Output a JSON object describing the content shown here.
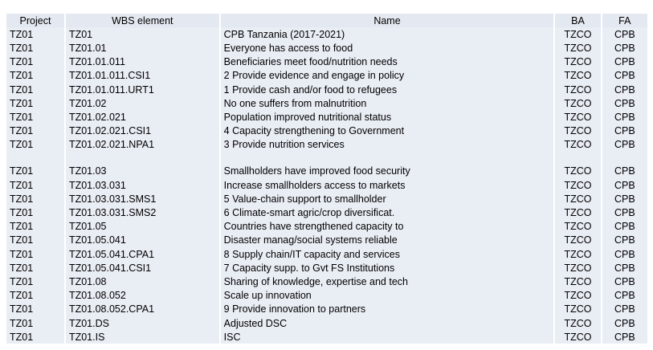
{
  "columns": [
    "Project",
    "WBS element",
    "Name",
    "BA",
    "FA"
  ],
  "rows": [
    [
      "TZ01",
      "TZ01",
      "CPB Tanzania (2017-2021)",
      "TZCO",
      "CPB"
    ],
    [
      "TZ01",
      "TZ01.01",
      "Everyone has access to food",
      "TZCO",
      "CPB"
    ],
    [
      "TZ01",
      "TZ01.01.011",
      "Beneficiaries meet food/nutrition needs",
      "TZCO",
      "CPB"
    ],
    [
      "TZ01",
      "TZ01.01.011.CSI1",
      "2 Provide evidence and engage in policy",
      "TZCO",
      "CPB"
    ],
    [
      "TZ01",
      "TZ01.01.011.URT1",
      "1 Provide cash and/or food to refugees",
      "TZCO",
      "CPB"
    ],
    [
      "TZ01",
      "TZ01.02",
      "No one suffers from malnutrition",
      "TZCO",
      "CPB"
    ],
    [
      "TZ01",
      "TZ01.02.021",
      "Population improved nutritional status",
      "TZCO",
      "CPB"
    ],
    [
      "TZ01",
      "TZ01.02.021.CSI1",
      "4 Capacity strengthening to Government",
      "TZCO",
      "CPB"
    ],
    [
      "TZ01",
      "TZ01.02.021.NPA1",
      "3 Provide nutrition services",
      "TZCO",
      "CPB"
    ],
    [
      "",
      "",
      "",
      "",
      ""
    ],
    [
      "TZ01",
      "TZ01.03",
      "Smallholders have improved food security",
      "TZCO",
      "CPB"
    ],
    [
      "TZ01",
      "TZ01.03.031",
      "Increase smallholders access to markets",
      "TZCO",
      "CPB"
    ],
    [
      "TZ01",
      "TZ01.03.031.SMS1",
      "5 Value-chain support to smallholder",
      "TZCO",
      "CPB"
    ],
    [
      "TZ01",
      "TZ01.03.031.SMS2",
      "6 Climate-smart agric/crop diversificat.",
      "TZCO",
      "CPB"
    ],
    [
      "TZ01",
      "TZ01.05",
      "Countries have strengthened capacity to",
      "TZCO",
      "CPB"
    ],
    [
      "TZ01",
      "TZ01.05.041",
      "Disaster manag/social systems reliable",
      "TZCO",
      "CPB"
    ],
    [
      "TZ01",
      "TZ01.05.041.CPA1",
      "8 Supply chain/IT capacity and services",
      "TZCO",
      "CPB"
    ],
    [
      "TZ01",
      "TZ01.05.041.CSI1",
      "7 Capacity supp. to Gvt FS Institutions",
      "TZCO",
      "CPB"
    ],
    [
      "TZ01",
      "TZ01.08",
      "Sharing of knowledge, expertise and tech",
      "TZCO",
      "CPB"
    ],
    [
      "TZ01",
      "TZ01.08.052",
      "Scale up innovation",
      "TZCO",
      "CPB"
    ],
    [
      "TZ01",
      "TZ01.08.052.CPA1",
      "9 Provide innovation to partners",
      "TZCO",
      "CPB"
    ],
    [
      "TZ01",
      "TZ01.DS",
      "Adjusted DSC",
      "TZCO",
      "CPB"
    ],
    [
      "TZ01",
      "TZ01.IS",
      "ISC",
      "TZCO",
      "CPB"
    ]
  ]
}
